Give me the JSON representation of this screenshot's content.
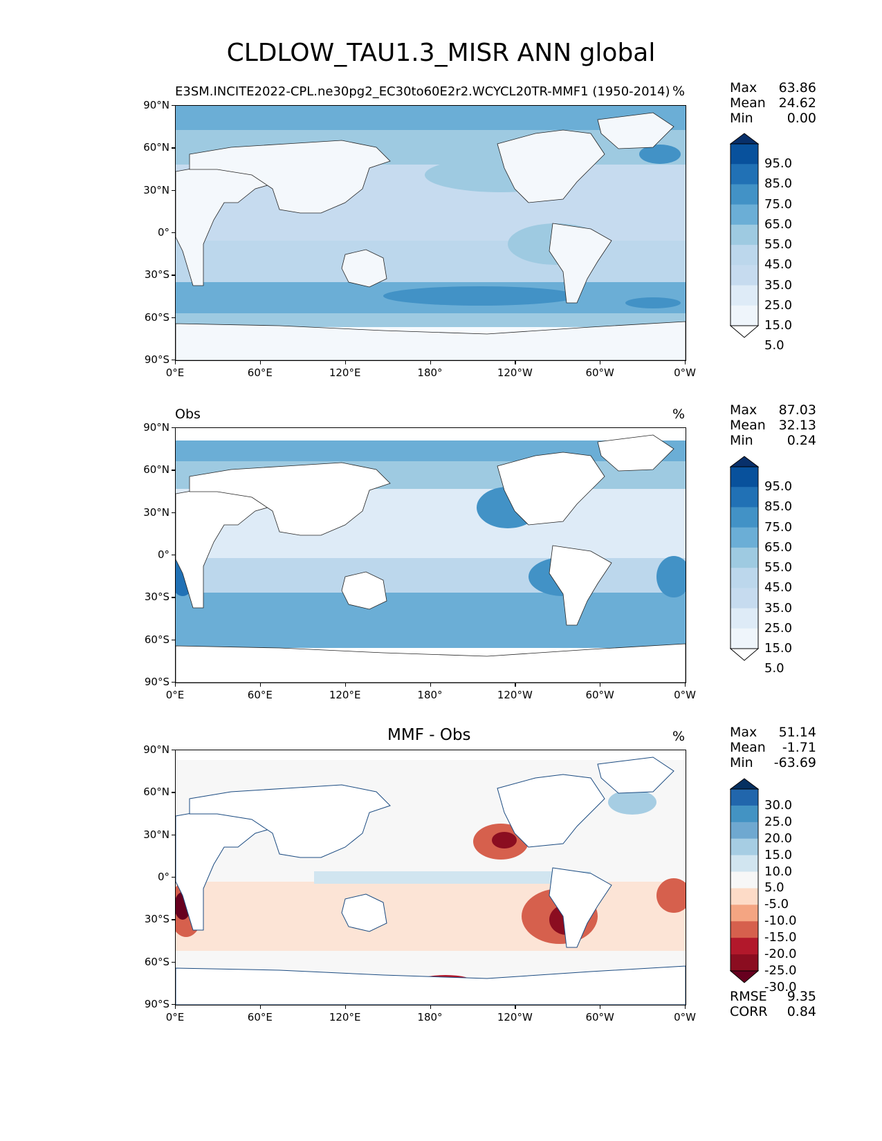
{
  "figure_title": "CLDLOW_TAU1.3_MISR ANN global",
  "lat_labels": [
    "90°N",
    "60°N",
    "30°N",
    "0°",
    "30°S",
    "60°S",
    "90°S"
  ],
  "lon_labels": [
    "0°E",
    "60°E",
    "120°E",
    "180°",
    "120°W",
    "60°W",
    "0°W"
  ],
  "panels": [
    {
      "title": "E3SM.INCITE2022-CPL.ne30pg2_EC30to60E2r2.WCYCL20TR-MMF1 (1950-2014)",
      "unit": "%",
      "stats": {
        "max_label": "Max",
        "max": "63.86",
        "mean_label": "Mean",
        "mean": "24.62",
        "min_label": "Min",
        "min": "0.00"
      },
      "colorbar": {
        "labels": [
          "95.0",
          "85.0",
          "75.0",
          "65.0",
          "55.0",
          "45.0",
          "35.0",
          "25.0",
          "15.0",
          "5.0"
        ],
        "colors": [
          "#08306b",
          "#08519c",
          "#2171b5",
          "#4292c6",
          "#6baed6",
          "#9ecae1",
          "#bcd7ec",
          "#c6dbef",
          "#deebf7",
          "#eff5fb",
          "#ffffff"
        ]
      }
    },
    {
      "title": "Obs",
      "unit": "%",
      "stats": {
        "max_label": "Max",
        "max": "87.03",
        "mean_label": "Mean",
        "mean": "32.13",
        "min_label": "Min",
        "min": "0.24"
      },
      "colorbar": {
        "labels": [
          "95.0",
          "85.0",
          "75.0",
          "65.0",
          "55.0",
          "45.0",
          "35.0",
          "25.0",
          "15.0",
          "5.0"
        ],
        "colors": [
          "#08306b",
          "#08519c",
          "#2171b5",
          "#4292c6",
          "#6baed6",
          "#9ecae1",
          "#bcd7ec",
          "#c6dbef",
          "#deebf7",
          "#eff5fb",
          "#ffffff"
        ]
      }
    },
    {
      "title": "MMF - Obs",
      "unit": "%",
      "stats": {
        "max_label": "Max",
        "max": "51.14",
        "mean_label": "Mean",
        "mean": "-1.71",
        "min_label": "Min",
        "min": "-63.69"
      },
      "metrics": {
        "rmse_label": "RMSE",
        "rmse": "9.35",
        "corr_label": "CORR",
        "corr": "0.84"
      },
      "colorbar": {
        "labels": [
          "30.0",
          "25.0",
          "20.0",
          "15.0",
          "10.0",
          "5.0",
          "-5.0",
          "-10.0",
          "-15.0",
          "-20.0",
          "-25.0",
          "-30.0"
        ],
        "colors": [
          "#053061",
          "#2166ac",
          "#4393c3",
          "#6fa8d0",
          "#a6cde3",
          "#d1e5f0",
          "#f7f7f7",
          "#fddbc7",
          "#f4a582",
          "#d6604d",
          "#b2182b",
          "#8b0d20",
          "#67001f"
        ]
      }
    }
  ]
}
